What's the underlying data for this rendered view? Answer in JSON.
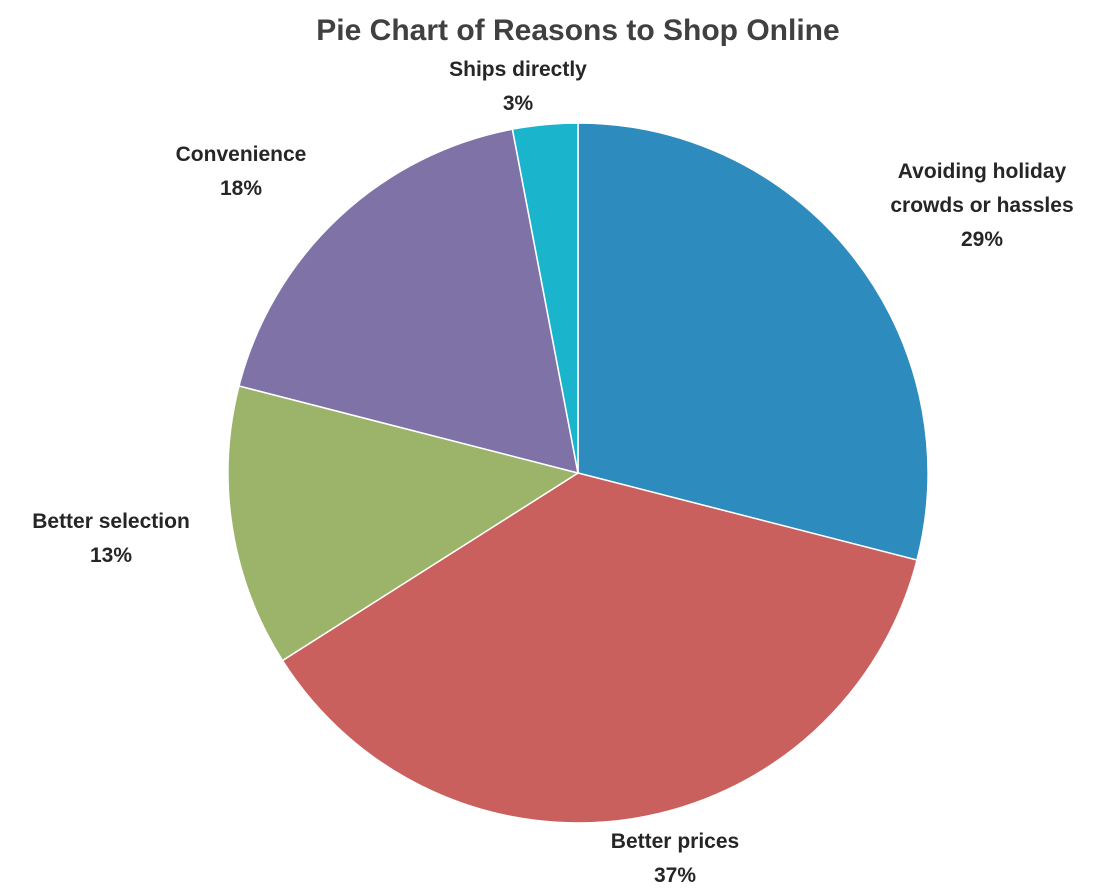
{
  "chart_data": {
    "type": "pie",
    "title": "Pie Chart of Reasons to Shop Online",
    "slices": [
      {
        "label": [
          "Avoiding holiday",
          "crowds or hassles"
        ],
        "value": 29,
        "display": "29%",
        "color": "#2e8bbd"
      },
      {
        "label": [
          "Better prices"
        ],
        "value": 37,
        "display": "37%",
        "color": "#c9605e"
      },
      {
        "label": [
          "Better selection"
        ],
        "value": 13,
        "display": "13%",
        "color": "#9bb46a"
      },
      {
        "label": [
          "Convenience"
        ],
        "value": 18,
        "display": "18%",
        "color": "#7f72a7"
      },
      {
        "label": [
          "Ships directly"
        ],
        "value": 3,
        "display": "3%",
        "color": "#1ab5cc"
      }
    ],
    "start_angle": "12 o'clock",
    "direction": "clockwise",
    "legend": "none"
  }
}
